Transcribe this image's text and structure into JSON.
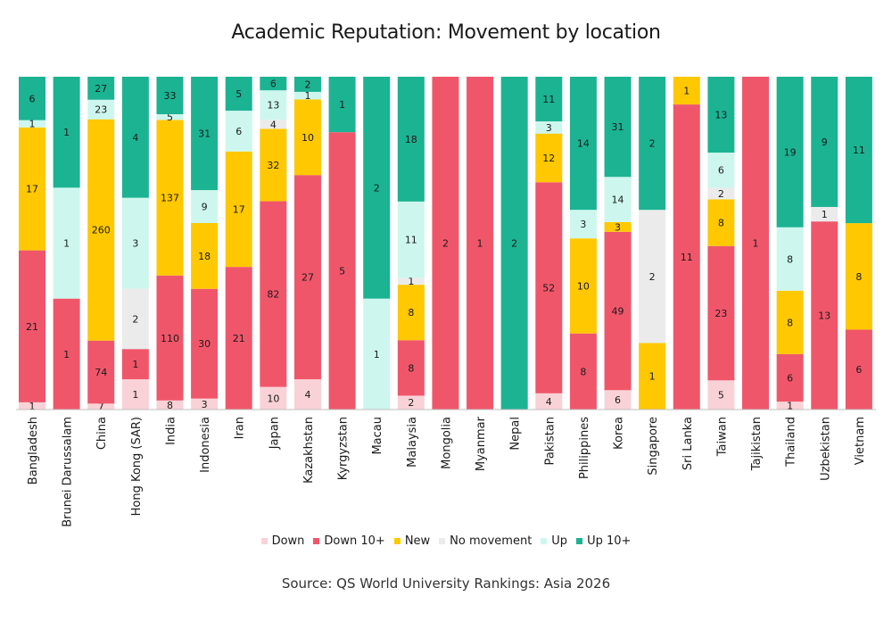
{
  "title": "Academic Reputation: Movement by location",
  "source": "Source: QS World University Rankings: Asia 2026",
  "chart_data": {
    "type": "bar",
    "stacked": "100%",
    "categories": [
      "Bangladesh",
      "Brunei Darussalam",
      "China",
      "Hong Kong (SAR)",
      "India",
      "Indonesia",
      "Iran",
      "Japan",
      "Kazakhstan",
      "Kyrgyzstan",
      "Macau",
      "Malaysia",
      "Mongolia",
      "Myanmar",
      "Nepal",
      "Pakistan",
      "Philippines",
      "Korea",
      "Singapore",
      "Sri Lanka",
      "Taiwan",
      "Tajikistan",
      "Thailand",
      "Uzbekistan",
      "Vietnam"
    ],
    "series": [
      {
        "name": "Down",
        "color": "#f9d2d7",
        "values": [
          1,
          0,
          7,
          1,
          8,
          3,
          0,
          10,
          4,
          0,
          0,
          2,
          0,
          0,
          0,
          4,
          0,
          6,
          0,
          0,
          5,
          0,
          1,
          0,
          0
        ]
      },
      {
        "name": "Down 10+",
        "color": "#f0566a",
        "values": [
          21,
          1,
          74,
          1,
          110,
          30,
          21,
          82,
          27,
          5,
          0,
          8,
          2,
          1,
          0,
          52,
          8,
          49,
          0,
          11,
          23,
          1,
          6,
          13,
          6
        ]
      },
      {
        "name": "New",
        "color": "#ffc800",
        "values": [
          17,
          0,
          260,
          0,
          137,
          18,
          17,
          32,
          10,
          0,
          0,
          8,
          0,
          0,
          0,
          12,
          10,
          3,
          1,
          1,
          8,
          0,
          8,
          0,
          8
        ]
      },
      {
        "name": "No movement",
        "color": "#ebebeb",
        "values": [
          0,
          0,
          0,
          2,
          0,
          0,
          0,
          4,
          0,
          0,
          0,
          1,
          0,
          0,
          0,
          0,
          0,
          0,
          2,
          0,
          2,
          0,
          0,
          1,
          0
        ]
      },
      {
        "name": "Up",
        "color": "#cdf7ee",
        "values": [
          1,
          1,
          23,
          3,
          5,
          9,
          6,
          13,
          1,
          0,
          1,
          11,
          0,
          0,
          0,
          3,
          3,
          14,
          0,
          0,
          6,
          0,
          8,
          0,
          0
        ]
      },
      {
        "name": "Up 10+",
        "color": "#1cb393",
        "values": [
          6,
          1,
          27,
          4,
          33,
          31,
          5,
          6,
          2,
          1,
          2,
          18,
          0,
          0,
          2,
          11,
          14,
          31,
          2,
          0,
          13,
          0,
          19,
          9,
          11
        ]
      }
    ],
    "ylim": [
      0,
      1
    ],
    "grid": false,
    "legend": "bottom"
  }
}
